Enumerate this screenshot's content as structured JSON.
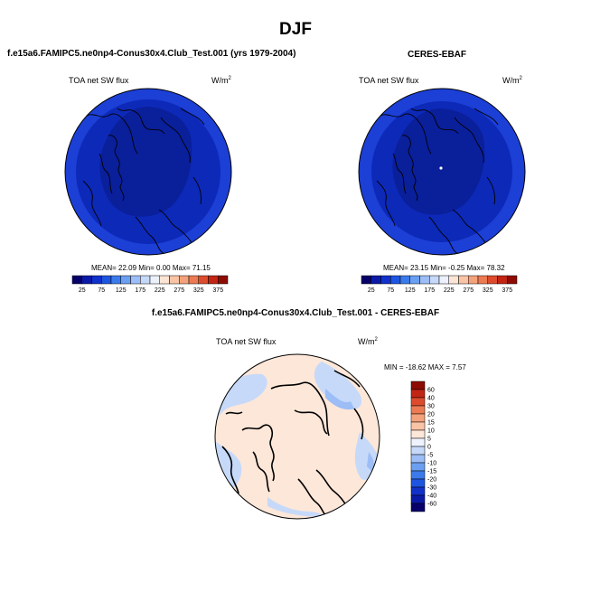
{
  "title": "DJF",
  "palette": {
    "seq": [
      "#08006a",
      "#0b1aa6",
      "#1131c9",
      "#1e55e0",
      "#3b7aea",
      "#6a9ff1",
      "#9cbdf6",
      "#c6d9f9",
      "#ecf1fc",
      "#fde5d6",
      "#f9c4a6",
      "#f3a27c",
      "#ec7a53",
      "#dd4b2d",
      "#c22513",
      "#8e0b04"
    ],
    "diff": [
      "#08006a",
      "#0b1aa6",
      "#1131c9",
      "#1e55e0",
      "#3b7aea",
      "#6a9ff1",
      "#9cbdf6",
      "#c6d9f9",
      "#eef3fd",
      "#fde7d9",
      "#f9c4a6",
      "#f3a27c",
      "#ec7a53",
      "#dd4b2d",
      "#c22513",
      "#8e0b04"
    ]
  },
  "panels": {
    "model": {
      "title": "f.e15a6.FAMIPC5.ne0np4-Conus30x4.Club_Test.001 (yrs 1979-2004)",
      "variable": "TOA net SW flux",
      "units_base": "W/m",
      "units_exp": "2",
      "stats": "MEAN=  22.09  Min=   0.00  Max=  71.15",
      "colorbar_labels": [
        "25",
        "75",
        "125",
        "175",
        "225",
        "275",
        "325",
        "375"
      ]
    },
    "obs": {
      "title": "CERES-EBAF",
      "variable": "TOA net SW flux",
      "units_base": "W/m",
      "units_exp": "2",
      "stats": "MEAN=  23.15  Min=  -0.25  Max=  78.32",
      "colorbar_labels": [
        "25",
        "75",
        "125",
        "175",
        "225",
        "275",
        "325",
        "375"
      ]
    },
    "diff": {
      "title": "f.e15a6.FAMIPC5.ne0np4-Conus30x4.Club_Test.001 - CERES-EBAF",
      "variable": "TOA net SW flux",
      "units_base": "W/m",
      "units_exp": "2",
      "stats": "MIN = -18.62 MAX =   7.57",
      "colorbar_labels": [
        "60",
        "40",
        "30",
        "20",
        "15",
        "10",
        "5",
        "0",
        "-5",
        "-10",
        "-15",
        "-20",
        "-30",
        "-40",
        "-60"
      ]
    }
  },
  "chart_data": [
    {
      "type": "heatmap",
      "projection": "north polar stereographic",
      "title": "f.e15a6.FAMIPC5.ne0np4-Conus30x4.Club_Test.001 (yrs 1979-2004)",
      "variable": "TOA net SW flux",
      "units": "W/m2",
      "mean": 22.09,
      "min": 0.0,
      "max": 71.15,
      "contour_levels": [
        25,
        50,
        75,
        100,
        125,
        150,
        175,
        200,
        225,
        250,
        275,
        300,
        325,
        350,
        375
      ],
      "colorbar_ticks": [
        25,
        75,
        125,
        175,
        225,
        275,
        325,
        375
      ],
      "zones": [
        {
          "region": "pole to ~70N",
          "range": [
            0,
            25
          ]
        },
        {
          "region": "~70N to ~55N",
          "range": [
            25,
            50
          ]
        },
        {
          "region": "outer ring",
          "range": [
            50,
            75
          ]
        }
      ]
    },
    {
      "type": "heatmap",
      "projection": "north polar stereographic",
      "title": "CERES-EBAF",
      "variable": "TOA net SW flux",
      "units": "W/m2",
      "mean": 23.15,
      "min": -0.25,
      "max": 78.32,
      "contour_levels": [
        25,
        50,
        75,
        100,
        125,
        150,
        175,
        200,
        225,
        250,
        275,
        300,
        325,
        350,
        375
      ],
      "colorbar_ticks": [
        25,
        75,
        125,
        175,
        225,
        275,
        325,
        375
      ],
      "zones": [
        {
          "region": "pole to ~70N",
          "range": [
            0,
            25
          ]
        },
        {
          "region": "~70N to ~55N",
          "range": [
            25,
            50
          ]
        },
        {
          "region": "outer ring",
          "range": [
            50,
            75
          ]
        }
      ]
    },
    {
      "type": "heatmap",
      "projection": "north polar stereographic",
      "title": "f.e15a6.FAMIPC5.ne0np4-Conus30x4.Club_Test.001 - CERES-EBAF",
      "variable": "TOA net SW flux",
      "units": "W/m2",
      "min": -18.62,
      "max": 7.57,
      "contour_levels": [
        -60,
        -40,
        -30,
        -20,
        -15,
        -10,
        -5,
        0,
        5,
        10,
        15,
        20,
        30,
        40,
        60
      ],
      "colorbar_ticks": [
        60,
        40,
        30,
        20,
        15,
        10,
        5,
        0,
        -5,
        -10,
        -15,
        -20,
        -30,
        -40,
        -60
      ]
    }
  ]
}
